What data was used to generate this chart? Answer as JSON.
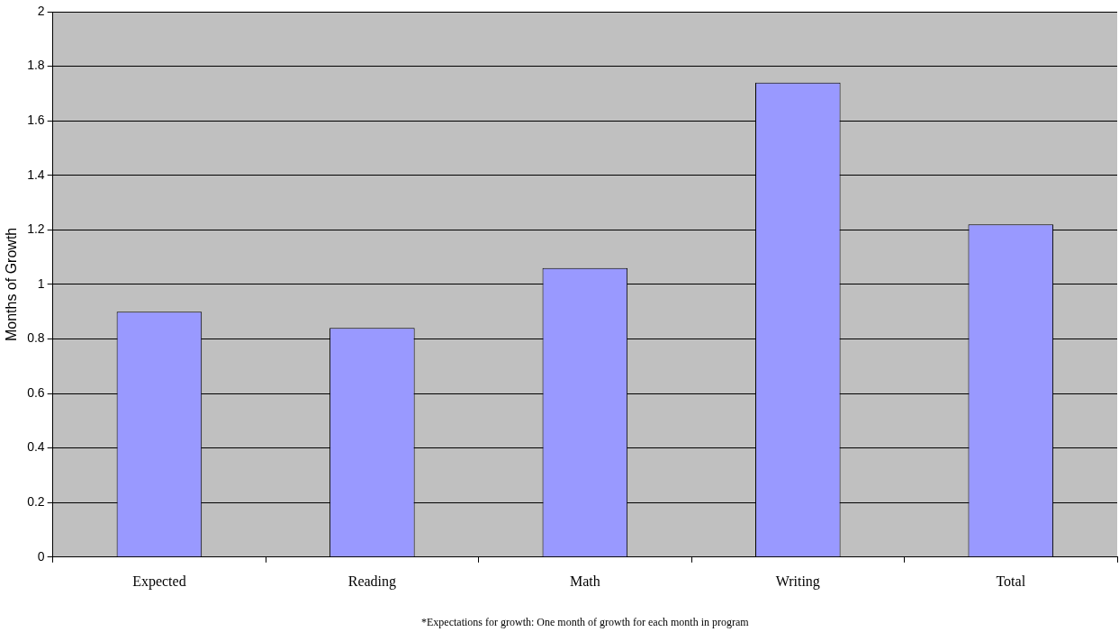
{
  "chart_data": {
    "type": "bar",
    "ylabel": "Months of Growth",
    "categories": [
      "Expected",
      "Reading",
      "Math",
      "Writing",
      "Total"
    ],
    "values": [
      0.9,
      0.84,
      1.06,
      1.74,
      1.22
    ],
    "color": "#9999ff",
    "ylim": [
      0,
      2
    ],
    "yticks": [
      0,
      0.2,
      0.4,
      0.6,
      0.8,
      1,
      1.2,
      1.4,
      1.6,
      1.8,
      2
    ],
    "grid": "y",
    "annotations": [
      "*Expectations for growth: One month of growth for each month in program"
    ]
  }
}
